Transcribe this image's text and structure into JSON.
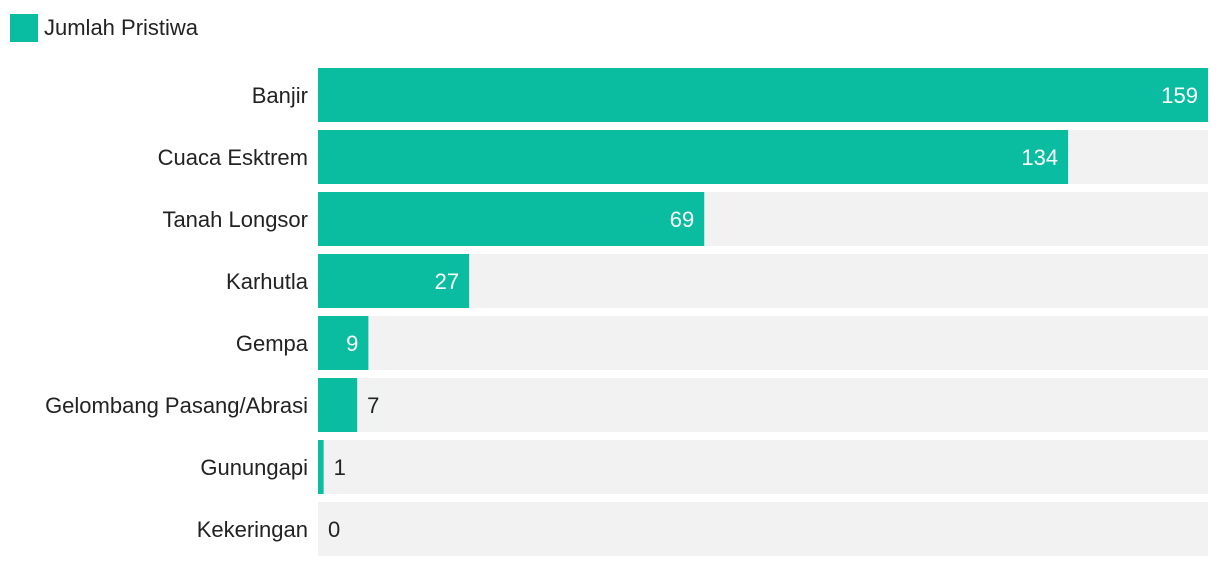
{
  "colors": {
    "bar": "#0abda0",
    "track": "#f2f2f2",
    "value_inside": "#ffffff",
    "value_outside": "#222222"
  },
  "chart_data": {
    "type": "bar",
    "orientation": "horizontal",
    "title": "",
    "xlabel": "",
    "ylabel": "",
    "xlim": [
      0,
      159
    ],
    "grid": false,
    "legend": {
      "position": "top-left",
      "entries": [
        "Jumlah Pristiwa"
      ]
    },
    "categories": [
      "Banjir",
      "Cuaca Esktrem",
      "Tanah Longsor",
      "Karhutla",
      "Gempa",
      "Gelombang Pasang/Abrasi",
      "Gunungapi",
      "Kekeringan"
    ],
    "series": [
      {
        "name": "Jumlah Pristiwa",
        "values": [
          159,
          134,
          69,
          27,
          9,
          7,
          1,
          0
        ]
      }
    ]
  }
}
